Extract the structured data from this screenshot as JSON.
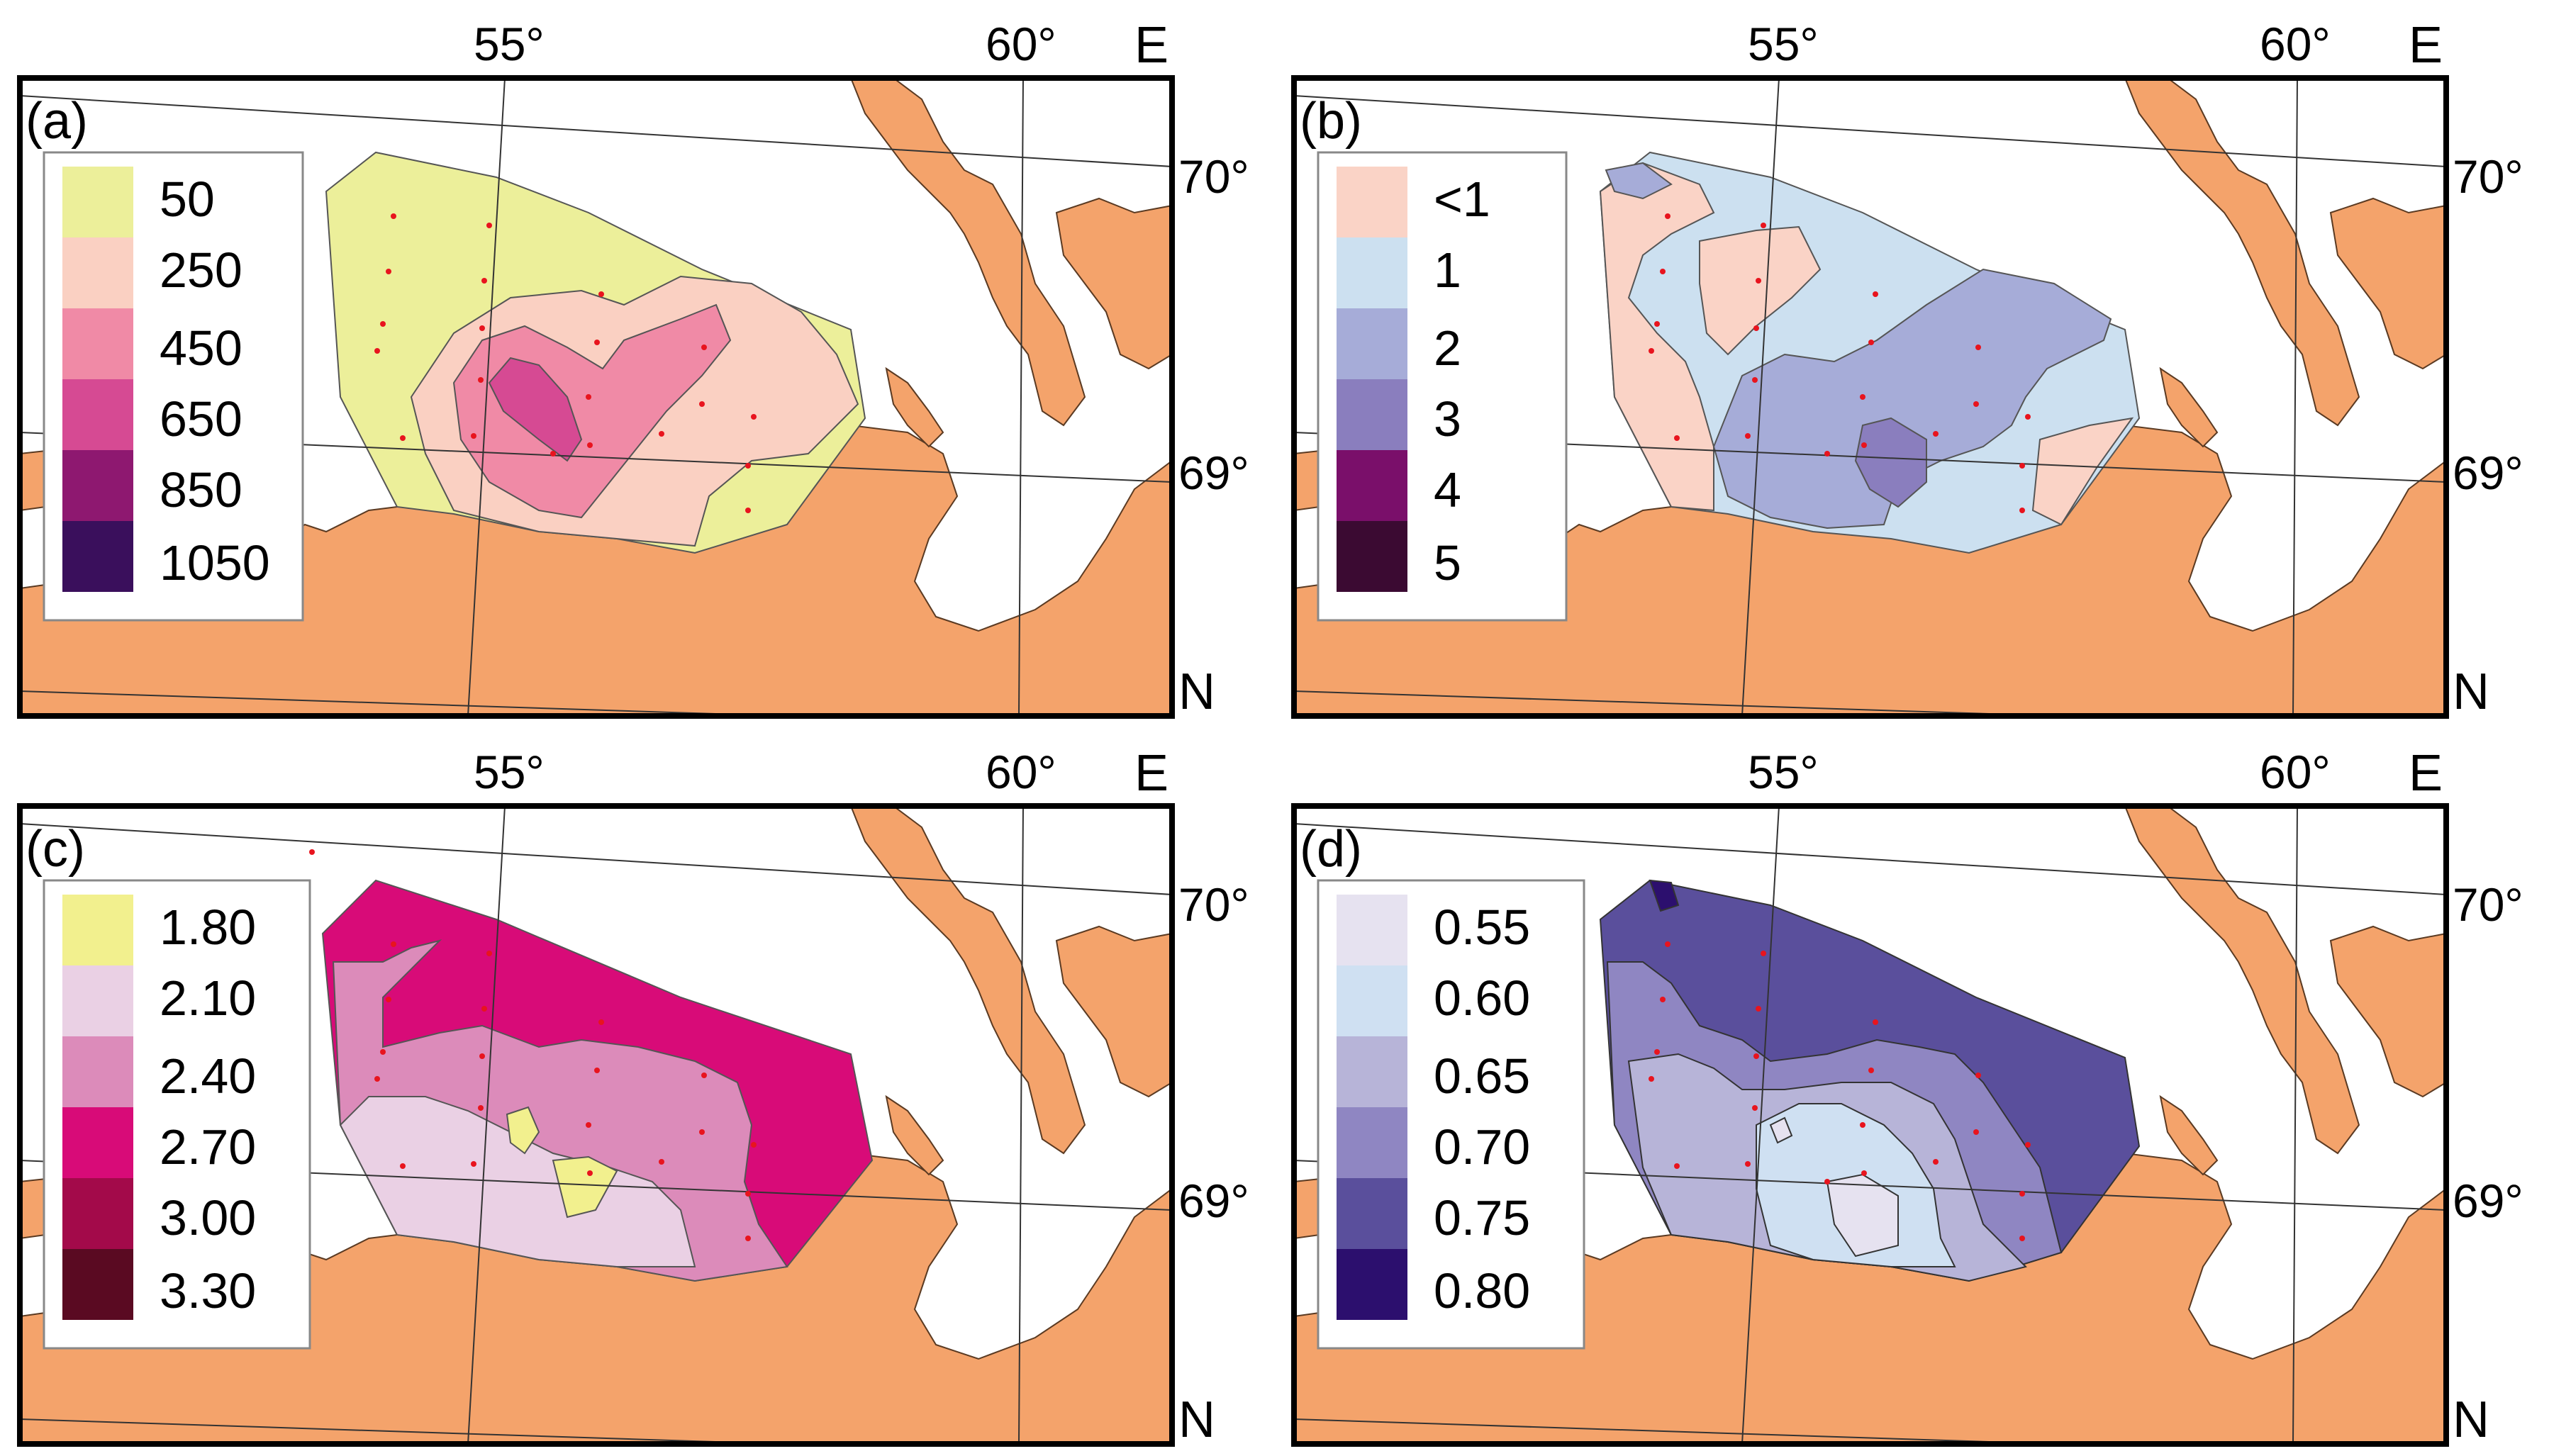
{
  "axes": {
    "lon_ticks": [
      "55°",
      "60°"
    ],
    "lat_ticks": [
      "70°",
      "69°"
    ],
    "east_label": "E",
    "north_label": "N"
  },
  "colors": {
    "land": "#f4a36b",
    "sea": "#ffffff",
    "station": "#e8141e",
    "frame": "#000000"
  },
  "panels": [
    {
      "id": "a",
      "label": "(a)",
      "legend": [
        {
          "value": "50",
          "color": "#ecef9a"
        },
        {
          "value": "250",
          "color": "#fad0c2"
        },
        {
          "value": "450",
          "color": "#f08aa6"
        },
        {
          "value": "650",
          "color": "#d64a93"
        },
        {
          "value": "850",
          "color": "#8e1870"
        },
        {
          "value": "1050",
          "color": "#3a0f5c"
        }
      ]
    },
    {
      "id": "b",
      "label": "(b)",
      "legend": [
        {
          "value": "<1",
          "color": "#fad3c6"
        },
        {
          "value": "1",
          "color": "#cce0f0"
        },
        {
          "value": "2",
          "color": "#a6acd8"
        },
        {
          "value": "3",
          "color": "#8a7ebe"
        },
        {
          "value": "4",
          "color": "#7a0f6a"
        },
        {
          "value": "5",
          "color": "#3b0a32"
        }
      ]
    },
    {
      "id": "c",
      "label": "(c)",
      "legend": [
        {
          "value": "1.80",
          "color": "#f2f08e"
        },
        {
          "value": "2.10",
          "color": "#ead0e4"
        },
        {
          "value": "2.40",
          "color": "#dc8bba"
        },
        {
          "value": "2.70",
          "color": "#d80b78"
        },
        {
          "value": "3.00",
          "color": "#a30a4a"
        },
        {
          "value": "3.30",
          "color": "#5a0a22"
        }
      ]
    },
    {
      "id": "d",
      "label": "(d)",
      "legend": [
        {
          "value": "0.55",
          "color": "#e6e2f0"
        },
        {
          "value": "0.60",
          "color": "#cfe0f2"
        },
        {
          "value": "0.65",
          "color": "#b7b4d8"
        },
        {
          "value": "0.70",
          "color": "#8f86c2"
        },
        {
          "value": "0.75",
          "color": "#5a4f9c"
        },
        {
          "value": "0.80",
          "color": "#2c0f6e"
        }
      ]
    }
  ]
}
